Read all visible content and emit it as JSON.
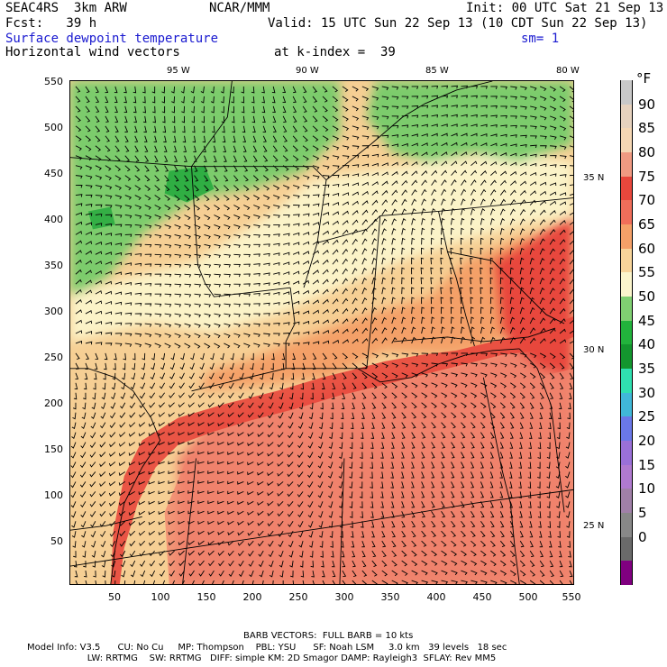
{
  "header": {
    "model": "SEAC4RS  3km ARW",
    "center": "NCAR/MMM",
    "init": "Init: 00 UTC Sat 21 Sep 13",
    "fcst": "Fcst:   39 h",
    "valid": "Valid: 15 UTC Sun 22 Sep 13 (10 CDT Sun 22 Sep 13)",
    "field": "Surface dewpoint temperature",
    "smoothing": "sm= 1",
    "vectors": "Horizontal wind vectors",
    "kindex": "at k-index =  39"
  },
  "axes": {
    "x_ticks": [
      "50",
      "100",
      "150",
      "200",
      "250",
      "300",
      "350",
      "400",
      "450",
      "500",
      "550"
    ],
    "y_ticks": [
      "550",
      "500",
      "450",
      "400",
      "350",
      "300",
      "250",
      "200",
      "150",
      "100",
      "50"
    ],
    "lon_labels": [
      "95 W",
      "90 W",
      "85 W",
      "80 W"
    ],
    "lat_labels": [
      "35 N",
      "30 N",
      "25 N"
    ]
  },
  "colorbar": {
    "unit": "°F",
    "labels": [
      "90",
      "85",
      "80",
      "75",
      "70",
      "65",
      "60",
      "55",
      "50",
      "45",
      "40",
      "35",
      "30",
      "25",
      "20",
      "15",
      "10",
      "5",
      "0"
    ],
    "colors": [
      "#c8c8c8",
      "#e6d2be",
      "#f5d7b4",
      "#f09a82",
      "#e8473c",
      "#f06e5a",
      "#f4a068",
      "#f7d49a",
      "#fbf5cc",
      "#80d072",
      "#22b33c",
      "#13962e",
      "#30e0b0",
      "#40b8d8",
      "#6a78e8",
      "#9a70d8",
      "#b07ad0",
      "#a080a8",
      "#888888",
      "#6a6a6a",
      "#800080"
    ]
  },
  "footer": {
    "barb": "BARB VECTORS:  FULL BARB = 10 kts",
    "line1": "Model Info: V3.5      CU: No Cu     MP: Thompson    PBL: YSU      SF: Noah LSM     3.0 km   39 levels   18 sec",
    "line2": "                     LW: RRTMG    SW: RRTMG   DIFF: simple KM: 2D Smagor DAMP: Rayleigh3  SFLAY: Rev MM5"
  },
  "colors": {
    "green_light": "#7ccc6c",
    "green_dark": "#22a83c",
    "cream": "#fbf3c8",
    "peach": "#f6cf94",
    "orange": "#f3a26c",
    "salmon": "#f0826c",
    "red": "#e84a3e"
  }
}
